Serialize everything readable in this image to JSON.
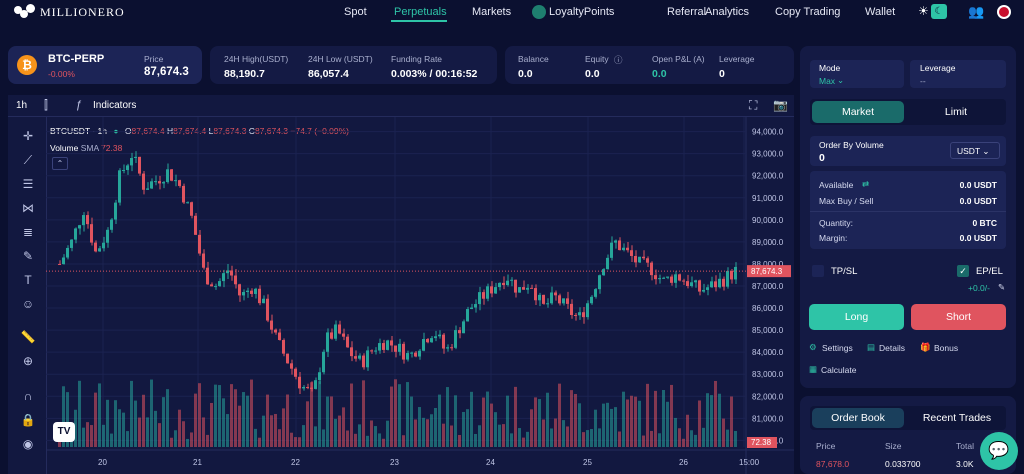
{
  "brand": {
    "name": "MILLIONERO"
  },
  "nav": {
    "items": [
      "Spot",
      "Perpetuals",
      "Markets",
      "LoyaltyPoints",
      "Referral",
      "Analytics",
      "Copy Trading",
      "Wallet"
    ],
    "active": "Perpetuals"
  },
  "ticker": {
    "symbol": "BTC-PERP",
    "change": "-0.00%",
    "price_label": "Price",
    "price": "87,674.3"
  },
  "stats": {
    "high_label": "24H High(USDT)",
    "high": "88,190.7",
    "low_label": "24H Low (USDT)",
    "low": "86,057.4",
    "funding_label": "Funding Rate",
    "funding": "0.003% / 00:16:52"
  },
  "account": {
    "balance_label": "Balance",
    "balance": "0.0",
    "equity_label": "Equity",
    "equity": "0.0",
    "pnl_label": "Open P&L (A)",
    "pnl": "0.0",
    "leverage_label": "Leverage",
    "leverage": "0"
  },
  "chart_toolbar": {
    "interval": "1h",
    "indicators": "Indicators"
  },
  "chart_header": {
    "pair": "BTCUSDT · 1h",
    "o": "87,674.4",
    "h": "87,674.4",
    "l": "87,674.3",
    "c": "87,674.3",
    "chg": "−74.7 (−0.09%)",
    "volume_label": "Volume",
    "sma_label": "SMA",
    "volume_value": "72.38"
  },
  "chart_data": {
    "type": "candlestick",
    "x_ticks": [
      "20",
      "21",
      "22",
      "23",
      "24",
      "25",
      "26",
      "15:00"
    ],
    "y_ticks": [
      "94,000.0",
      "93,000.0",
      "92,000.0",
      "91,000.0",
      "90,000.0",
      "89,000.0",
      "88,000.0",
      "87,000.0",
      "86,000.0",
      "85,000.0",
      "84,000.0",
      "83,000.0",
      "82,000.0",
      "81,000.0",
      "80,000.0"
    ],
    "ylim": [
      79700,
      94300
    ],
    "last_price": "87,674.3",
    "last_volume": "72.38",
    "close_path": [
      88000,
      89000,
      90500,
      88500,
      89500,
      92000,
      93000,
      91500,
      91800,
      92200,
      91500,
      90000,
      87500,
      87000,
      87800,
      86500,
      87000,
      86000,
      84500,
      83500,
      82500,
      82000,
      84500,
      85000,
      84000,
      83500,
      84200,
      84500,
      84200,
      83800,
      84500,
      85000,
      84000,
      85000,
      86000,
      86500,
      87000,
      87500,
      86800,
      87200,
      86000,
      86500,
      86000,
      85500,
      86500,
      88000,
      89000,
      88500,
      88000,
      87800,
      87200,
      87500,
      87200,
      86800,
      87000,
      87300,
      87674
    ]
  },
  "order_form": {
    "mode_label": "Mode",
    "mode_value": "Max",
    "leverage_label": "Leverage",
    "leverage_value": "--",
    "tab_market": "Market",
    "tab_limit": "Limit",
    "order_by_label": "Order By Volume",
    "order_value": "0",
    "currency": "USDT",
    "available_label": "Available",
    "available": "0.0 USDT",
    "maxbuy_label": "Max Buy / Sell",
    "maxbuy": "0.0 USDT",
    "quantity_label": "Quantity:",
    "quantity": "0 BTC",
    "margin_label": "Margin:",
    "margin": "0.0 USDT",
    "tpsl": "TP/SL",
    "epel": "EP/EL",
    "epel_value": "+0.0/-",
    "long": "Long",
    "short": "Short",
    "settings": "Settings",
    "details": "Details",
    "bonus": "Bonus",
    "calculate": "Calculate"
  },
  "orderbook": {
    "tab_book": "Order Book",
    "tab_trades": "Recent Trades",
    "col_price": "Price",
    "col_size": "Size",
    "col_total": "Total",
    "row_price": "87,678.0",
    "row_size": "0.033700",
    "row_total": "3.0K"
  },
  "colors": {
    "bg": "#0b1030",
    "panel": "#141a44",
    "accent": "#2ec4a7",
    "red": "#e0545f",
    "green": "#26a69a"
  }
}
